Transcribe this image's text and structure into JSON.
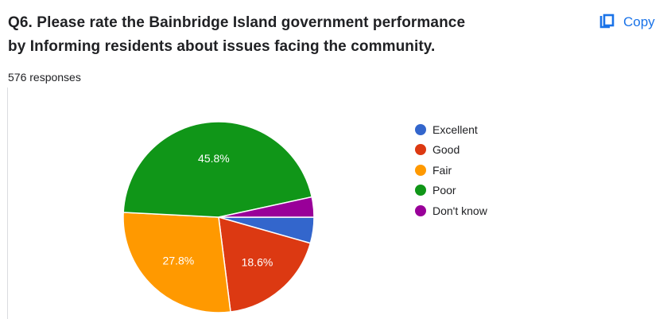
{
  "question": {
    "title_line1": "Q6.  Please rate the Bainbridge Island government performance",
    "title_line2": "by Informing residents about issues facing the community.",
    "responses": "576 responses"
  },
  "actions": {
    "copy_label": "Copy",
    "copy_icon": "copy-icon"
  },
  "colors": {
    "accent": "#1a73e8",
    "Excellent": "#3366cc",
    "Good": "#dc3912",
    "Fair": "#ff9900",
    "Poor": "#109618",
    "Don't know": "#990099"
  },
  "chart_data": {
    "type": "pie",
    "title": "",
    "categories": [
      "Excellent",
      "Good",
      "Fair",
      "Poor",
      "Don't know"
    ],
    "values": [
      4.4,
      18.6,
      27.8,
      45.8,
      3.4
    ],
    "data_labels": [
      "",
      "18.6%",
      "27.8%",
      "45.8%",
      ""
    ],
    "legend_position": "right"
  }
}
